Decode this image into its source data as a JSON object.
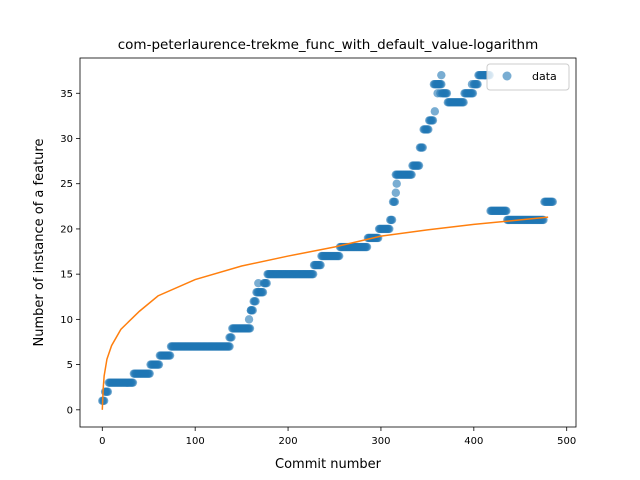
{
  "chart_data": {
    "type": "scatter",
    "title": "com-peterlaurence-trekme_func_with_default_value-logarithm",
    "xlabel": "Commit number",
    "ylabel": "Number of instance of a feature",
    "xlim": [
      -24,
      510
    ],
    "ylim": [
      -1.9,
      38.9
    ],
    "xticks": [
      0,
      100,
      200,
      300,
      400,
      500
    ],
    "yticks": [
      0,
      5,
      10,
      15,
      20,
      25,
      30,
      35
    ],
    "legend": {
      "position": "top-right",
      "entries": [
        "data"
      ]
    },
    "colors": {
      "data": "#1f77b4",
      "fit": "#ff7f0e"
    },
    "grid": false,
    "series": [
      {
        "name": "data",
        "kind": "scatter",
        "segments": [
          [
            0,
            3,
            1
          ],
          [
            3,
            7,
            2
          ],
          [
            7,
            34,
            3
          ],
          [
            34,
            52,
            4
          ],
          [
            52,
            62,
            5
          ],
          [
            62,
            74,
            6
          ],
          [
            74,
            138,
            7
          ],
          [
            138,
            140,
            8
          ],
          [
            140,
            160,
            9
          ],
          [
            160,
            163,
            11
          ],
          [
            163,
            166,
            12
          ],
          [
            166,
            174,
            13
          ],
          [
            174,
            178,
            14
          ],
          [
            178,
            228,
            15
          ],
          [
            228,
            236,
            16
          ],
          [
            236,
            256,
            17
          ],
          [
            256,
            286,
            18
          ],
          [
            286,
            298,
            19
          ],
          [
            298,
            310,
            20
          ],
          [
            310,
            313,
            21
          ],
          [
            313,
            316,
            23
          ],
          [
            316,
            334,
            26
          ],
          [
            334,
            342,
            27
          ],
          [
            342,
            346,
            29
          ],
          [
            346,
            352,
            31
          ],
          [
            352,
            357,
            32
          ],
          [
            357,
            366,
            36
          ],
          [
            366,
            372,
            35
          ],
          [
            372,
            390,
            34
          ],
          [
            390,
            400,
            35
          ],
          [
            400,
            405,
            36
          ],
          [
            405,
            418,
            37
          ],
          [
            418,
            436,
            22
          ],
          [
            436,
            476,
            21
          ],
          [
            476,
            486,
            23
          ]
        ],
        "extra_points": [
          [
            137,
            8
          ],
          [
            158,
            10
          ],
          [
            168,
            14
          ],
          [
            160,
            11
          ],
          [
            316,
            24
          ],
          [
            317,
            25
          ],
          [
            358,
            33
          ],
          [
            361,
            35
          ],
          [
            365,
            37
          ],
          [
            362,
            36
          ],
          [
            364,
            35
          ],
          [
            398,
            36
          ],
          [
            412,
            37
          ]
        ]
      },
      {
        "name": "",
        "kind": "line",
        "function": "logarithm",
        "x_range": [
          0,
          480
        ],
        "points": [
          [
            0,
            0
          ],
          [
            1,
            2.4
          ],
          [
            2,
            3.75
          ],
          [
            5,
            5.6
          ],
          [
            10,
            7.1
          ],
          [
            20,
            8.9
          ],
          [
            40,
            10.9
          ],
          [
            60,
            12.6
          ],
          [
            100,
            14.4
          ],
          [
            150,
            15.9
          ],
          [
            200,
            17.0
          ],
          [
            250,
            18.0
          ],
          [
            300,
            19.2
          ],
          [
            350,
            19.9
          ],
          [
            400,
            20.5
          ],
          [
            450,
            21.0
          ],
          [
            480,
            21.3
          ]
        ]
      }
    ]
  }
}
